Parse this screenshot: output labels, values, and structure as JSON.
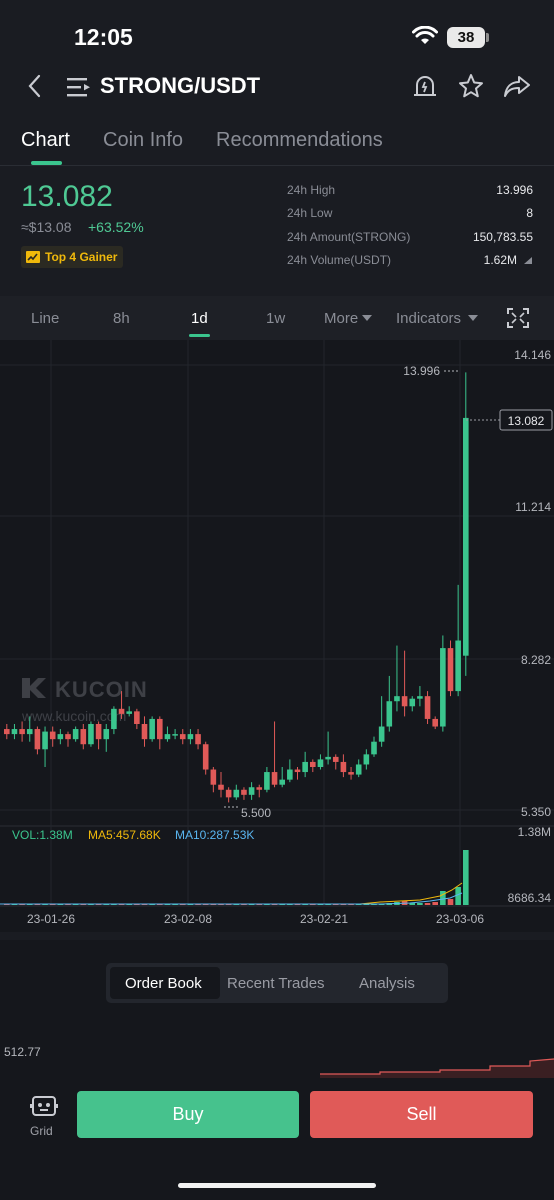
{
  "status_bar": {
    "time": "12:05",
    "battery": "38"
  },
  "header": {
    "title": "STRONG/USDT"
  },
  "tabs": [
    {
      "label": "Chart",
      "active": true
    },
    {
      "label": "Coin Info",
      "active": false
    },
    {
      "label": "Recommendations",
      "active": false
    }
  ],
  "ticker": {
    "price": "13.082",
    "fiat": "≈$13.08",
    "change": "+63.52%",
    "badge": "Top 4 Gainer"
  },
  "stats": [
    {
      "label": "24h High",
      "value": "13.996"
    },
    {
      "label": "24h Low",
      "value": "8"
    },
    {
      "label": "24h Amount(STRONG)",
      "value": "150,783.55"
    },
    {
      "label": "24h Volume(USDT)",
      "value": "1.62M"
    }
  ],
  "chart_tabs": [
    {
      "label": "Line"
    },
    {
      "label": "8h"
    },
    {
      "label": "1d",
      "active": true
    },
    {
      "label": "1w"
    },
    {
      "label": "More"
    },
    {
      "label": "Indicators"
    }
  ],
  "chart": {
    "watermark": "KUCOIN",
    "watermark_url": "www.kucoin.com",
    "y_ticks": [
      "14.146",
      "11.214",
      "8.282",
      "5.350"
    ],
    "high_marker": "13.996",
    "low_marker": "5.500",
    "last_price": "13.082",
    "vol_label": "VOL:1.38M",
    "ma5_label": "MA5:457.68K",
    "ma10_label": "MA10:287.53K",
    "vol_max": "1.38M",
    "vol_min": "8686.34",
    "x_ticks": [
      "23-01-26",
      "23-02-08",
      "23-02-21",
      "23-03-06"
    ]
  },
  "colors": {
    "up": "#3bc58e",
    "down": "#e05a58",
    "ma5": "#f0b90b",
    "ma10": "#5ab6f0"
  },
  "bottom": {
    "segments": [
      {
        "label": "Order Book",
        "active": true
      },
      {
        "label": "Recent Trades"
      },
      {
        "label": "Analysis"
      }
    ],
    "depth_value": "512.77"
  },
  "actions": {
    "grid": "Grid",
    "buy": "Buy",
    "sell": "Sell"
  }
}
